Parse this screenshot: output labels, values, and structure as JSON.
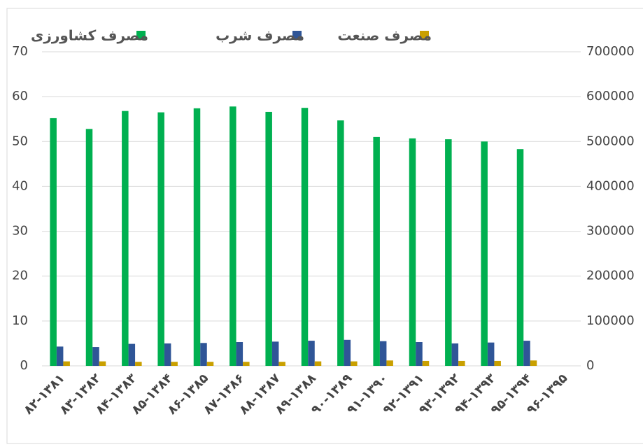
{
  "chart_data": {
    "type": "bar",
    "categories": [
      "۸۲-۱۳۸۱",
      "۸۳-۱۳۸۲",
      "۸۴-۱۳۸۳",
      "۸۵-۱۳۸۴",
      "۸۶-۱۳۸۵",
      "۸۷-۱۳۸۶",
      "۸۸-۱۳۸۷",
      "۸۹-۱۳۸۸",
      "۹۰-۱۳۸۹",
      "۹۱-۱۳۹۰",
      "۹۲-۱۳۹۱",
      "۹۳-۱۳۹۲",
      "۹۴-۱۳۹۳",
      "۹۵-۱۳۹۴",
      "۹۶-۱۳۹۵"
    ],
    "series": [
      {
        "name": "مصرف کشاورزی",
        "color": "#00b050",
        "values": [
          55.2,
          52.8,
          56.8,
          56.5,
          57.4,
          57.8,
          56.6,
          57.5,
          54.7,
          51.0,
          50.7,
          50.5,
          50.0,
          48.3,
          null
        ]
      },
      {
        "name": "مصرف شرب",
        "color": "#2f5597",
        "values": [
          4.3,
          4.2,
          4.9,
          5.0,
          5.1,
          5.3,
          5.4,
          5.6,
          5.8,
          5.5,
          5.3,
          5.0,
          5.2,
          5.6,
          null
        ]
      },
      {
        "name": "مصرف صنعت",
        "color": "#c9a000",
        "values": [
          1.0,
          1.0,
          0.9,
          0.9,
          0.9,
          0.9,
          0.9,
          1.0,
          1.0,
          1.2,
          1.1,
          1.1,
          1.1,
          1.2,
          null
        ]
      }
    ],
    "ylim": [
      0,
      70
    ],
    "yticks": [
      0,
      10,
      20,
      30,
      40,
      50,
      60,
      70
    ],
    "y2lim": [
      0,
      700000
    ],
    "y2ticks": [
      0,
      100000,
      200000,
      300000,
      400000,
      500000,
      600000,
      700000
    ],
    "grid": true,
    "legend": "top"
  }
}
